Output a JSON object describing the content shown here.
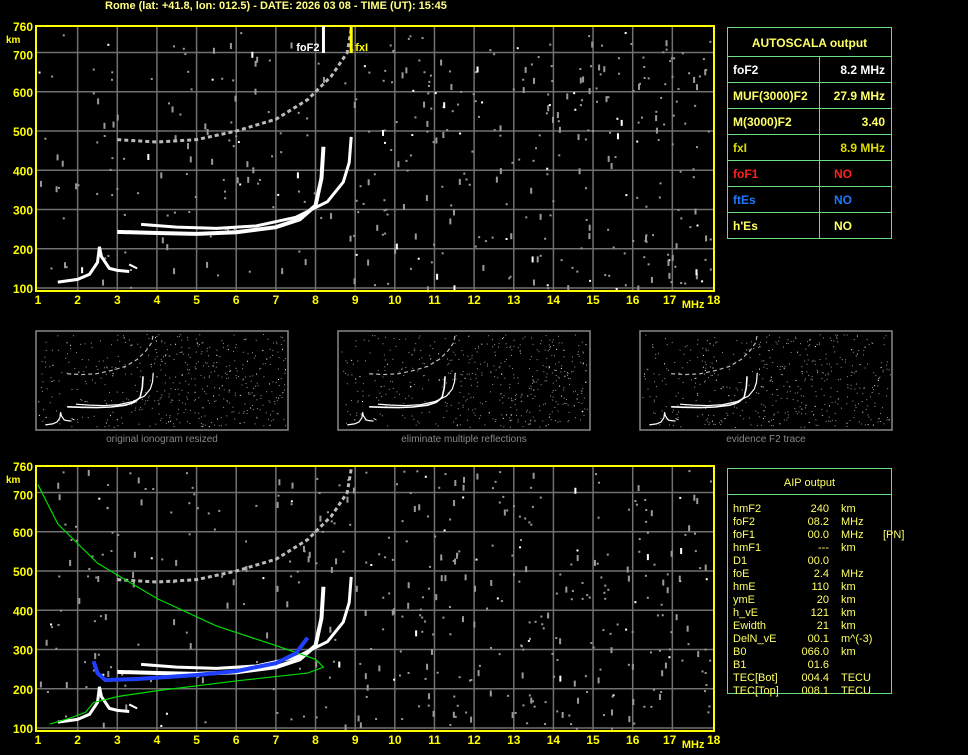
{
  "header": {
    "title": "Rome (lat: +41.8, lon: 012.5) - DATE: 2026 03 08 - TIME (UT): 15:45"
  },
  "colors": {
    "axis": "#ffff00",
    "grid": "#707070",
    "trace": "#ffffff",
    "profile": "#00dd00",
    "aip_trace": "#2040ff",
    "table_border": "#66e07a",
    "foF1": "#ff2020",
    "ftEs": "#1e78ff",
    "fxI": "#dddd00"
  },
  "chart_data": {
    "type": "line",
    "xlabel": "MHz",
    "ylabel": "km",
    "xlim": [
      1,
      18
    ],
    "ylim": [
      100,
      760
    ],
    "x_ticks": [
      "1",
      "2",
      "3",
      "4",
      "5",
      "6",
      "7",
      "8",
      "9",
      "10",
      "11",
      "12",
      "13",
      "14",
      "15",
      "16",
      "17",
      "18"
    ],
    "y_ticks": [
      "100",
      "200",
      "300",
      "400",
      "500",
      "600",
      "700",
      "760"
    ],
    "grid": true,
    "markers": [
      {
        "label": "foF2",
        "freq": 8.2
      },
      {
        "label": "fxI",
        "freq": 8.9
      }
    ],
    "traces": {
      "o_trace": [
        [
          3,
          243
        ],
        [
          4,
          240
        ],
        [
          5,
          238
        ],
        [
          6,
          242
        ],
        [
          7,
          255
        ],
        [
          7.6,
          275
        ],
        [
          8.0,
          310
        ],
        [
          8.15,
          380
        ],
        [
          8.2,
          460
        ]
      ],
      "x_trace": [
        [
          3.6,
          262
        ],
        [
          4.5,
          255
        ],
        [
          5.5,
          252
        ],
        [
          6.5,
          258
        ],
        [
          7.5,
          280
        ],
        [
          8.3,
          320
        ],
        [
          8.7,
          370
        ],
        [
          8.85,
          420
        ],
        [
          8.9,
          485
        ]
      ],
      "second_hop": [
        [
          3,
          478
        ],
        [
          4,
          472
        ],
        [
          5,
          478
        ],
        [
          6,
          500
        ],
        [
          7,
          530
        ],
        [
          7.8,
          580
        ],
        [
          8.4,
          640
        ],
        [
          8.8,
          700
        ],
        [
          8.9,
          760
        ]
      ],
      "e_trace": [
        [
          1.5,
          115
        ],
        [
          2,
          122
        ],
        [
          2.3,
          135
        ],
        [
          2.5,
          165
        ],
        [
          2.55,
          205
        ],
        [
          2.6,
          180
        ],
        [
          2.8,
          150
        ],
        [
          3,
          145
        ],
        [
          3.3,
          142
        ]
      ],
      "profile": [
        [
          1,
          720
        ],
        [
          1.5,
          620
        ],
        [
          2.5,
          520
        ],
        [
          4,
          430
        ],
        [
          5.5,
          360
        ],
        [
          7,
          310
        ],
        [
          8,
          275
        ],
        [
          8.2,
          255
        ],
        [
          7.8,
          240
        ],
        [
          6,
          220
        ],
        [
          4,
          195
        ],
        [
          3,
          180
        ],
        [
          2.4,
          165
        ],
        [
          2.2,
          140
        ],
        [
          1.8,
          125
        ],
        [
          1.3,
          110
        ]
      ],
      "aip_fit": [
        [
          2.4,
          270
        ],
        [
          2.5,
          240
        ],
        [
          2.7,
          222
        ],
        [
          3.5,
          225
        ],
        [
          5,
          235
        ],
        [
          6,
          245
        ],
        [
          7,
          265
        ],
        [
          7.5,
          290
        ],
        [
          7.8,
          330
        ]
      ]
    }
  },
  "thumbnails": [
    {
      "caption": "original ionogram resized"
    },
    {
      "caption": "eliminate multiple reflections"
    },
    {
      "caption": "evidence F2 trace"
    }
  ],
  "autoscala": {
    "title": "AUTOSCALA output",
    "rows": [
      {
        "key": "foF2",
        "value": "8.2 MHz",
        "color": "#ffffff"
      },
      {
        "key": "MUF(3000)F2",
        "value": "27.9 MHz",
        "color": "#ffff66"
      },
      {
        "key": "M(3000)F2",
        "value": "3.40",
        "color": "#ffff66"
      },
      {
        "key": "fxI",
        "value": "8.9 MHz",
        "color": "#dddd00"
      },
      {
        "key": "foF1",
        "value": "NO",
        "color": "#ff2020"
      },
      {
        "key": "ftEs",
        "value": "NO",
        "color": "#1e78ff"
      },
      {
        "key": "h'Es",
        "value": "NO",
        "color": "#ffff66"
      }
    ]
  },
  "aip": {
    "title": "AIP output",
    "rows": [
      [
        "hmF2",
        "240",
        "km",
        ""
      ],
      [
        "foF2",
        "08.2",
        "MHz",
        ""
      ],
      [
        "foF1",
        "00.0",
        "MHz",
        "[PN]"
      ],
      [
        "hmF1",
        "---",
        "km",
        ""
      ],
      [
        "D1",
        "00.0",
        "",
        ""
      ],
      [
        "foE",
        "2.4",
        "MHz",
        ""
      ],
      [
        "hmE",
        "110",
        "km",
        ""
      ],
      [
        "ymE",
        "20",
        "km",
        ""
      ],
      [
        "h_vE",
        "121",
        "km",
        ""
      ],
      [
        "Ewidth",
        "21",
        "km",
        ""
      ],
      [
        "DelN_vE",
        "00.1",
        "m^(-3)",
        ""
      ],
      [
        "B0",
        "066.0",
        "km",
        ""
      ],
      [
        "B1",
        "01.6",
        "",
        ""
      ],
      [
        "TEC[Bot]",
        "004.4",
        "TECU",
        ""
      ],
      [
        "TEC[Top]",
        "008.1",
        "TECU",
        ""
      ]
    ]
  }
}
